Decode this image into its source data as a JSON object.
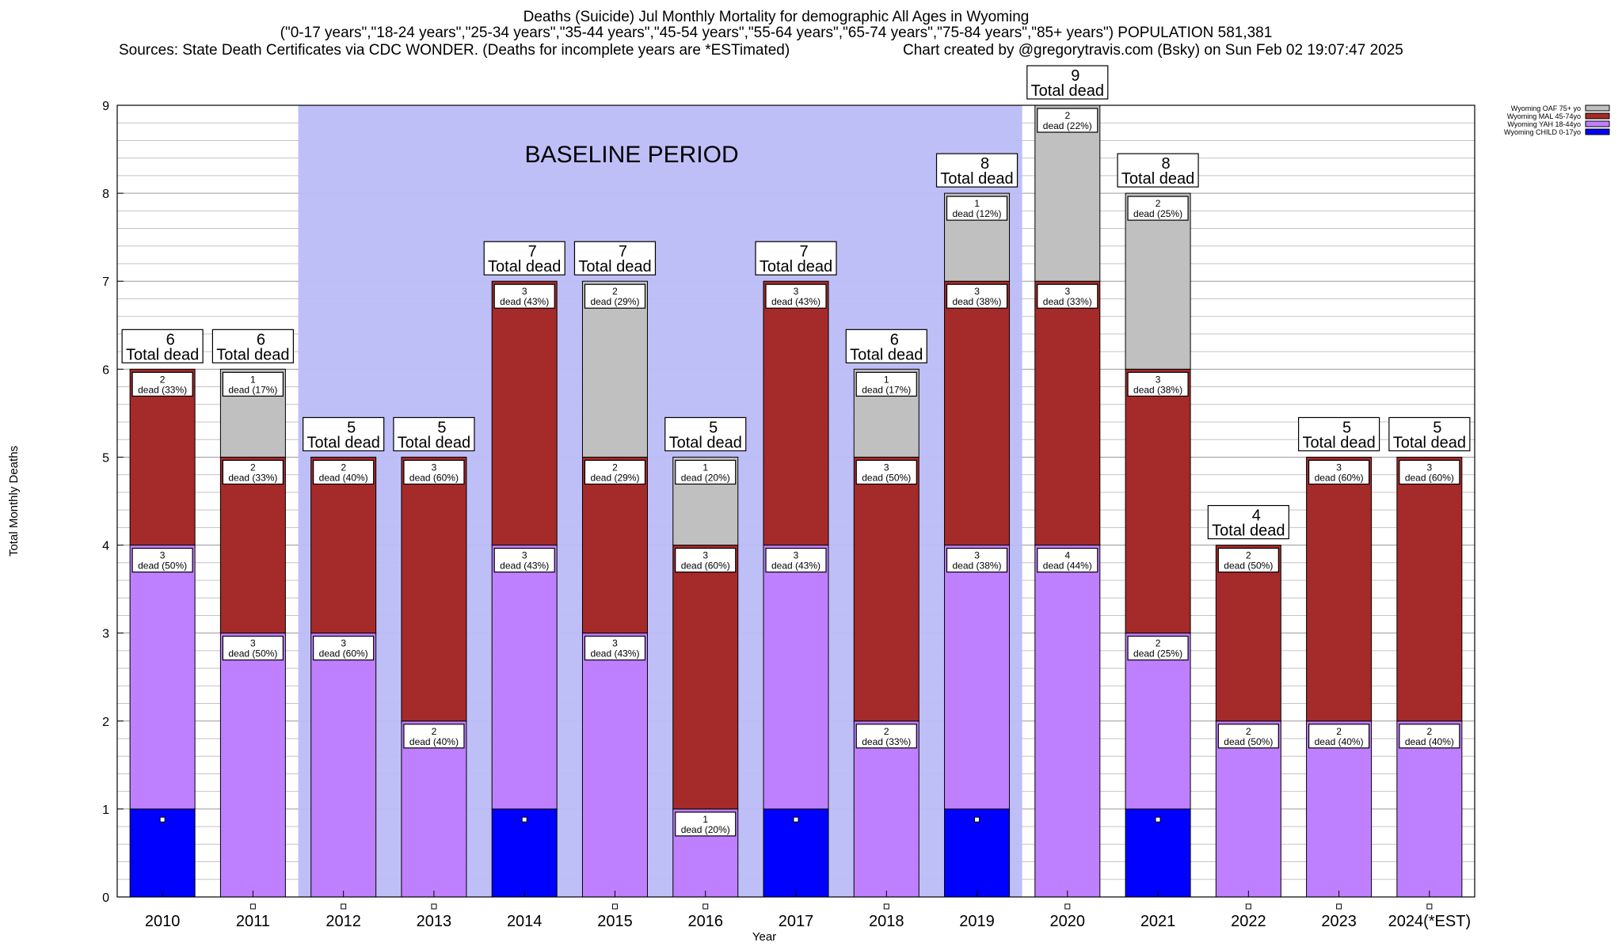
{
  "header": {
    "line1": "Deaths (Suicide) Jul Monthly Mortality for demographic All Ages in Wyoming",
    "line2": "(\"0-17 years\",\"18-24 years\",\"25-34 years\",\"35-44 years\",\"45-54 years\",\"55-64 years\",\"65-74 years\",\"75-84 years\",\"85+ years\") POPULATION 581,381",
    "sources": "Sources: State Death Certificates via CDC WONDER. (Deaths for incomplete years are *ESTimated)",
    "credit": "Chart created by @gregorytravis.com (Bsky) on Sun Feb 02 19:07:47 2025"
  },
  "chart_data": {
    "type": "bar",
    "stacked": true,
    "xlabel": "Year",
    "ylabel": "Total Monthly Deaths",
    "ylim": [
      0,
      9
    ],
    "yticks": [
      0,
      1,
      2,
      3,
      4,
      5,
      6,
      7,
      8,
      9
    ],
    "grid": true,
    "legend_position": "top-right",
    "baseline_label": "BASELINE PERIOD",
    "baseline_range": [
      "2012",
      "2019"
    ],
    "total_suffix": "Total dead",
    "categories": [
      "2010",
      "2011",
      "2012",
      "2013",
      "2014",
      "2015",
      "2016",
      "2017",
      "2018",
      "2019",
      "2020",
      "2021",
      "2022",
      "2023",
      "2024(*EST)"
    ],
    "totals": [
      6,
      6,
      5,
      5,
      7,
      7,
      5,
      7,
      6,
      8,
      9,
      8,
      4,
      5,
      5
    ],
    "series": [
      {
        "name": "Wyoming CHILD 0-17yo",
        "color": "#0000ff",
        "values": [
          1,
          0,
          0,
          0,
          1,
          0,
          0,
          1,
          0,
          1,
          0,
          1,
          0,
          0,
          0
        ],
        "labels": [
          "",
          "",
          "",
          "",
          "",
          "",
          "",
          "",
          "",
          "",
          "",
          "",
          "",
          "",
          ""
        ]
      },
      {
        "name": "Wyoming YAH 18-44yo",
        "color": "#bf80ff",
        "values": [
          3,
          3,
          3,
          2,
          3,
          3,
          1,
          3,
          2,
          3,
          4,
          2,
          2,
          2,
          2
        ],
        "labels": [
          "dead (50%)",
          "dead (50%)",
          "dead (60%)",
          "dead (40%)",
          "dead (43%)",
          "dead (43%)",
          "dead (20%)",
          "dead (43%)",
          "dead (33%)",
          "dead (38%)",
          "dead (44%)",
          "dead (25%)",
          "dead (50%)",
          "dead (40%)",
          "dead (40%)"
        ]
      },
      {
        "name": "Wyoming MAL 45-74yo",
        "color": "#a52a2a",
        "values": [
          2,
          2,
          2,
          3,
          3,
          2,
          3,
          3,
          3,
          3,
          3,
          3,
          2,
          3,
          3
        ],
        "labels": [
          "dead (33%)",
          "dead (33%)",
          "dead (40%)",
          "dead (60%)",
          "dead (43%)",
          "dead (29%)",
          "dead (60%)",
          "dead (43%)",
          "dead (50%)",
          "dead (38%)",
          "dead (33%)",
          "dead (38%)",
          "dead (50%)",
          "dead (60%)",
          "dead (60%)"
        ]
      },
      {
        "name": "Wyoming OAF 75+ yo",
        "color": "#c0c0c0",
        "values": [
          0,
          1,
          0,
          0,
          0,
          2,
          1,
          0,
          1,
          1,
          2,
          2,
          0,
          0,
          0
        ],
        "labels": [
          "",
          "dead (17%)",
          "",
          "",
          "",
          "dead (29%)",
          "dead (20%)",
          "",
          "dead (17%)",
          "dead (12%)",
          "dead (22%)",
          "dead (25%)",
          "",
          "",
          ""
        ]
      }
    ]
  }
}
